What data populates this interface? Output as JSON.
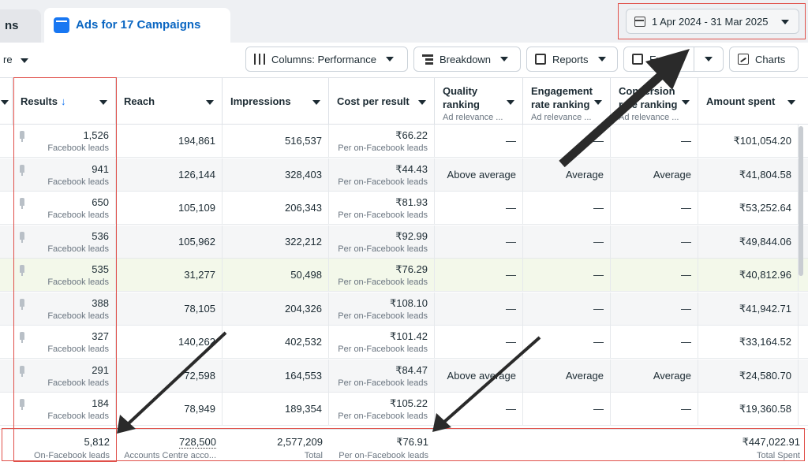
{
  "tabs": {
    "prev_label": "ns",
    "active_label": "Ads for 17 Campaigns"
  },
  "date_range": "1 Apr 2024 - 31 Mar 2025",
  "toolbar": {
    "left_label": "re",
    "columns_label": "Columns: Performance",
    "breakdown_label": "Breakdown",
    "reports_label": "Reports",
    "export_label": "Export",
    "charts_label": "Charts"
  },
  "headers": {
    "results": "Results",
    "reach": "Reach",
    "impressions": "Impressions",
    "cost": "Cost per result",
    "quality_line1": "Quality",
    "quality_line2": "ranking",
    "engagement_line1": "Engagement",
    "engagement_line2": "rate ranking",
    "conversion_line1": "Conversion",
    "conversion_line2": "rate ranking",
    "ad_relevance": "Ad relevance ...",
    "amount": "Amount spent"
  },
  "result_sub": "Facebook leads",
  "cost_sub": "Per on-Facebook leads",
  "rows": [
    {
      "results": "1,526",
      "reach": "194,861",
      "impressions": "516,537",
      "cost": "₹66.22",
      "quality": "—",
      "engagement": "—",
      "conversion": "—",
      "amount": "₹101,054.20"
    },
    {
      "results": "941",
      "reach": "126,144",
      "impressions": "328,403",
      "cost": "₹44.43",
      "quality": "Above average",
      "engagement": "Average",
      "conversion": "Average",
      "amount": "₹41,804.58"
    },
    {
      "results": "650",
      "reach": "105,109",
      "impressions": "206,343",
      "cost": "₹81.93",
      "quality": "—",
      "engagement": "—",
      "conversion": "—",
      "amount": "₹53,252.64"
    },
    {
      "results": "536",
      "reach": "105,962",
      "impressions": "322,212",
      "cost": "₹92.99",
      "quality": "—",
      "engagement": "—",
      "conversion": "—",
      "amount": "₹49,844.06"
    },
    {
      "results": "535",
      "reach": "31,277",
      "impressions": "50,498",
      "cost": "₹76.29",
      "quality": "—",
      "engagement": "—",
      "conversion": "—",
      "amount": "₹40,812.96"
    },
    {
      "results": "388",
      "reach": "78,105",
      "impressions": "204,326",
      "cost": "₹108.10",
      "quality": "—",
      "engagement": "—",
      "conversion": "—",
      "amount": "₹41,942.71"
    },
    {
      "results": "327",
      "reach": "140,262",
      "impressions": "402,532",
      "cost": "₹101.42",
      "quality": "—",
      "engagement": "—",
      "conversion": "—",
      "amount": "₹33,164.52"
    },
    {
      "results": "291",
      "reach": "72,598",
      "impressions": "164,553",
      "cost": "₹84.47",
      "quality": "Above average",
      "engagement": "Average",
      "conversion": "Average",
      "amount": "₹24,580.70"
    },
    {
      "results": "184",
      "reach": "78,949",
      "impressions": "189,354",
      "cost": "₹105.22",
      "quality": "—",
      "engagement": "—",
      "conversion": "—",
      "amount": "₹19,360.58"
    }
  ],
  "totals": {
    "results": "5,812",
    "results_sub": "On-Facebook leads",
    "reach": "728,500",
    "reach_sub": "Accounts Centre acco...",
    "impressions": "2,577,209",
    "impressions_sub": "Total",
    "cost": "₹76.91",
    "cost_sub": "Per on-Facebook leads",
    "amount": "₹447,022.91",
    "amount_sub": "Total Spent"
  },
  "colors": {
    "accent": "#1877f2",
    "highlight_box": "#e0504a",
    "arrow": "#2a2a2a"
  }
}
